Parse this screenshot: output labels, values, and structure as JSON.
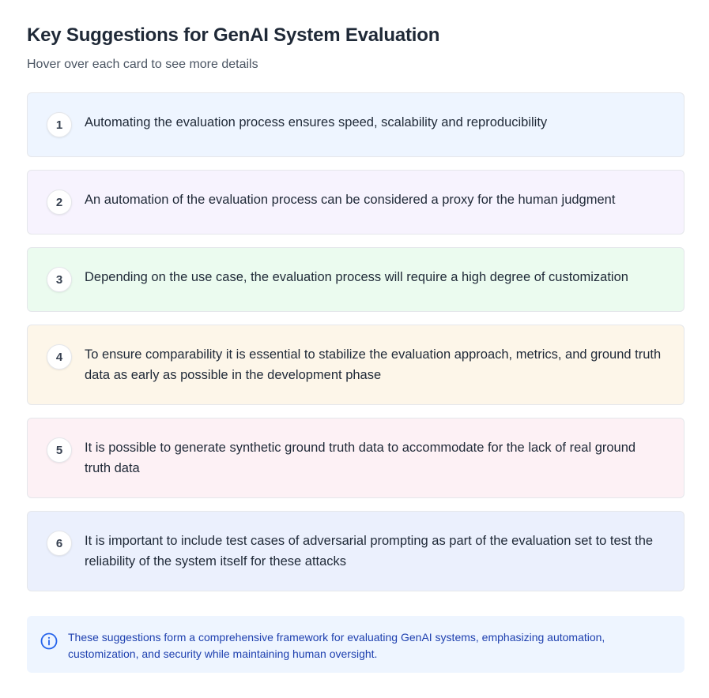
{
  "header": {
    "title": "Key Suggestions for GenAI System Evaluation",
    "subtitle": "Hover over each card to see more details"
  },
  "cards": [
    {
      "number": "1",
      "text": "Automating the evaluation process ensures speed, scalability and reproducibility",
      "bg": "#eef5ff"
    },
    {
      "number": "2",
      "text": "An automation of the evaluation process can be considered a proxy for the human judgment",
      "bg": "#f7f3fe"
    },
    {
      "number": "3",
      "text": "Depending on the use case, the evaluation process will require a high degree of customization",
      "bg": "#ebfbef"
    },
    {
      "number": "4",
      "text": "To ensure comparability it is essential to stabilize the evaluation approach, metrics, and ground truth data as early as possible in the development phase",
      "bg": "#fdf6e9"
    },
    {
      "number": "5",
      "text": "It is possible to generate synthetic ground truth data to accommodate for the lack of real ground truth data",
      "bg": "#fdf1f5"
    },
    {
      "number": "6",
      "text": "It is important to include test cases of adversarial prompting as part of the evaluation set to test the reliability of the system itself for these attacks",
      "bg": "#ebf0fd"
    }
  ],
  "info": {
    "icon": "info-icon",
    "text": "These suggestions form a comprehensive framework for evaluating GenAI systems, emphasizing automation, customization, and security while maintaining human oversight.",
    "color": "#1e40af"
  }
}
